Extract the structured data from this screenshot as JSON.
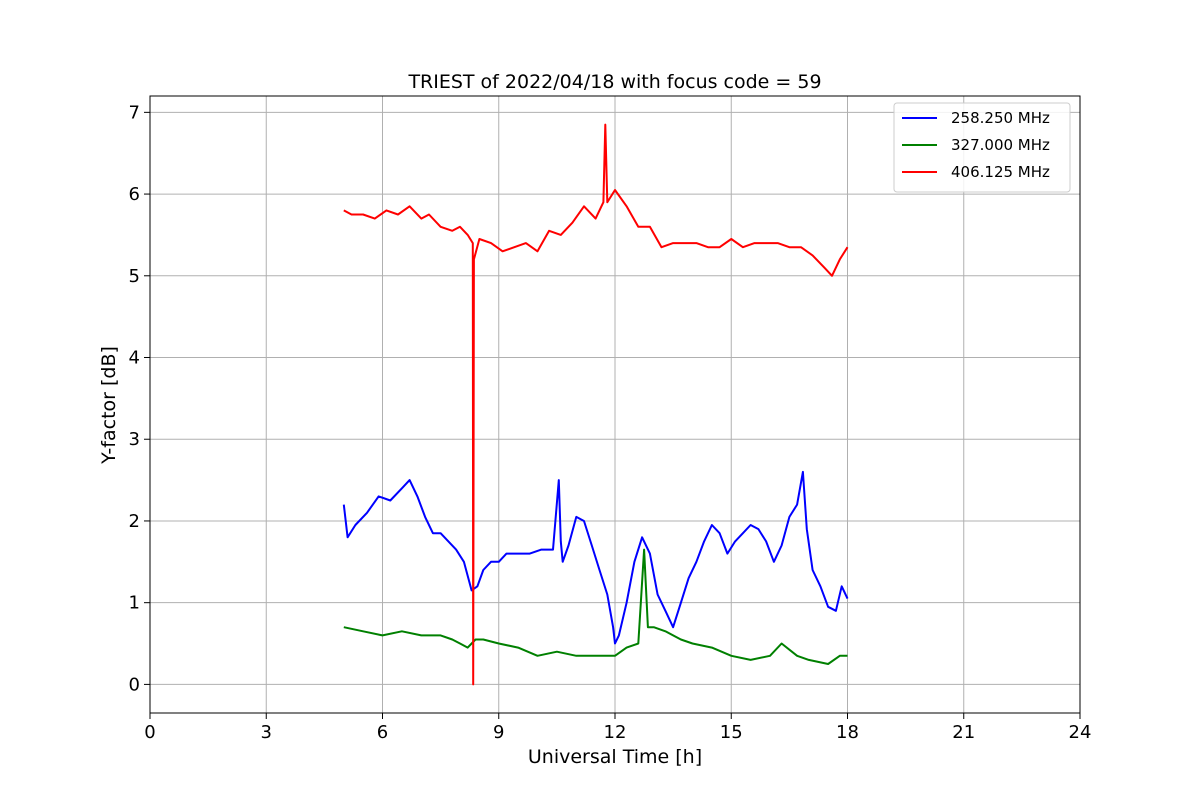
{
  "chart_data": {
    "type": "line",
    "title": "TRIEST of 2022/04/18 with focus code = 59",
    "xlabel": "Universal Time [h]",
    "ylabel": "Y-factor [dB]",
    "xlim": [
      0,
      24
    ],
    "ylim": [
      -0.35,
      7.2
    ],
    "xticks": [
      0,
      3,
      6,
      9,
      12,
      15,
      18,
      21,
      24
    ],
    "yticks": [
      0,
      1,
      2,
      3,
      4,
      5,
      6,
      7
    ],
    "grid": true,
    "legend_position": "upper-right",
    "series": [
      {
        "name": "258.250 MHz",
        "color": "#0000ff",
        "x": [
          5.0,
          5.1,
          5.3,
          5.6,
          5.9,
          6.2,
          6.5,
          6.7,
          6.9,
          7.1,
          7.3,
          7.5,
          7.7,
          7.9,
          8.1,
          8.3,
          8.45,
          8.6,
          8.8,
          9.0,
          9.2,
          9.5,
          9.8,
          10.1,
          10.4,
          10.55,
          10.6,
          10.65,
          10.8,
          11.0,
          11.2,
          11.4,
          11.6,
          11.8,
          11.95,
          12.0,
          12.1,
          12.3,
          12.5,
          12.7,
          12.9,
          13.1,
          13.3,
          13.5,
          13.7,
          13.9,
          14.1,
          14.3,
          14.5,
          14.7,
          14.9,
          15.1,
          15.3,
          15.5,
          15.7,
          15.9,
          16.1,
          16.3,
          16.5,
          16.7,
          16.85,
          16.95,
          17.1,
          17.3,
          17.5,
          17.7,
          17.85,
          18.0
        ],
        "y": [
          2.2,
          1.8,
          1.95,
          2.1,
          2.3,
          2.25,
          2.4,
          2.5,
          2.3,
          2.05,
          1.85,
          1.85,
          1.75,
          1.65,
          1.5,
          1.15,
          1.2,
          1.4,
          1.5,
          1.5,
          1.6,
          1.6,
          1.6,
          1.65,
          1.65,
          2.5,
          1.75,
          1.5,
          1.7,
          2.05,
          2.0,
          1.7,
          1.4,
          1.1,
          0.7,
          0.5,
          0.6,
          1.0,
          1.5,
          1.8,
          1.6,
          1.1,
          0.9,
          0.7,
          1.0,
          1.3,
          1.5,
          1.75,
          1.95,
          1.85,
          1.6,
          1.75,
          1.85,
          1.95,
          1.9,
          1.75,
          1.5,
          1.7,
          2.05,
          2.2,
          2.6,
          1.9,
          1.4,
          1.2,
          0.95,
          0.9,
          1.2,
          1.05
        ]
      },
      {
        "name": "327.000 MHz",
        "color": "#008000",
        "x": [
          5.0,
          5.5,
          6.0,
          6.5,
          7.0,
          7.5,
          7.8,
          8.0,
          8.2,
          8.4,
          8.6,
          9.0,
          9.5,
          10.0,
          10.5,
          11.0,
          11.5,
          12.0,
          12.3,
          12.6,
          12.75,
          12.85,
          13.0,
          13.3,
          13.7,
          14.0,
          14.5,
          15.0,
          15.5,
          16.0,
          16.3,
          16.7,
          17.0,
          17.5,
          17.8,
          18.0
        ],
        "y": [
          0.7,
          0.65,
          0.6,
          0.65,
          0.6,
          0.6,
          0.55,
          0.5,
          0.45,
          0.55,
          0.55,
          0.5,
          0.45,
          0.35,
          0.4,
          0.35,
          0.35,
          0.35,
          0.45,
          0.5,
          1.65,
          0.7,
          0.7,
          0.65,
          0.55,
          0.5,
          0.45,
          0.35,
          0.3,
          0.35,
          0.5,
          0.35,
          0.3,
          0.25,
          0.35,
          0.35
        ]
      },
      {
        "name": "406.125 MHz",
        "color": "#ff0000",
        "x": [
          5.0,
          5.2,
          5.5,
          5.8,
          6.1,
          6.4,
          6.7,
          7.0,
          7.2,
          7.5,
          7.8,
          8.0,
          8.2,
          8.33,
          8.34,
          8.36,
          8.5,
          8.8,
          9.1,
          9.4,
          9.7,
          10.0,
          10.3,
          10.6,
          10.9,
          11.2,
          11.5,
          11.7,
          11.75,
          11.8,
          12.0,
          12.3,
          12.6,
          12.9,
          13.2,
          13.5,
          13.8,
          14.1,
          14.4,
          14.7,
          15.0,
          15.3,
          15.6,
          15.9,
          16.2,
          16.5,
          16.8,
          17.1,
          17.4,
          17.6,
          17.8,
          18.0
        ],
        "y": [
          5.8,
          5.75,
          5.75,
          5.7,
          5.8,
          5.75,
          5.85,
          5.7,
          5.75,
          5.6,
          5.55,
          5.6,
          5.5,
          5.4,
          0.0,
          5.2,
          5.45,
          5.4,
          5.3,
          5.35,
          5.4,
          5.3,
          5.55,
          5.5,
          5.65,
          5.85,
          5.7,
          5.9,
          6.85,
          5.9,
          6.05,
          5.85,
          5.6,
          5.6,
          5.35,
          5.4,
          5.4,
          5.4,
          5.35,
          5.35,
          5.45,
          5.35,
          5.4,
          5.4,
          5.4,
          5.35,
          5.35,
          5.25,
          5.1,
          5.0,
          5.2,
          5.35
        ]
      }
    ]
  }
}
